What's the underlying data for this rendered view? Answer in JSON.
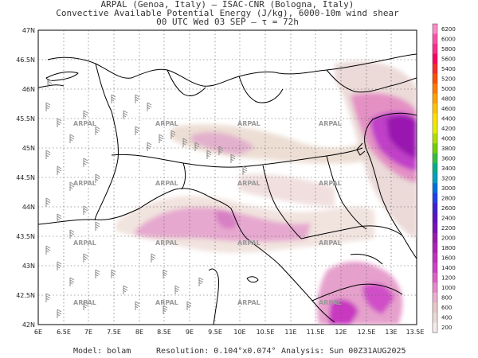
{
  "header": {
    "line1": "ARPAL (Genoa, Italy)  –  ISAC-CNR (Bologna, Italy)",
    "line2": "Convective Available Potential Energy (J/kg), 6000-10m wind shear",
    "line3": "00 UTC Wed 03 SEP  –  τ = 72h"
  },
  "axes": {
    "lat_labels": [
      "47N",
      "46.5N",
      "46N",
      "45.5N",
      "45N",
      "44.5N",
      "44N",
      "43.5N",
      "43N",
      "42.5N",
      "42N"
    ],
    "lon_labels": [
      "6E",
      "6.5E",
      "7E",
      "7.5E",
      "8E",
      "8.5E",
      "9E",
      "9.5E",
      "10E",
      "10.5E",
      "11E",
      "11.5E",
      "12E",
      "12.5E",
      "13E",
      "13.5E"
    ]
  },
  "watermark": "ARPAL",
  "colorbar": {
    "levels": [
      "6200",
      "6000",
      "5800",
      "5600",
      "5400",
      "5200",
      "5000",
      "4800",
      "4600",
      "4400",
      "4200",
      "4000",
      "3800",
      "3600",
      "3400",
      "3200",
      "3000",
      "2800",
      "2600",
      "2400",
      "2200",
      "2000",
      "1800",
      "1600",
      "1400",
      "1200",
      "1000",
      "800",
      "600",
      "400",
      "200"
    ],
    "colors": [
      "#ff8ac8",
      "#ff4fa8",
      "#ff2a8a",
      "#ff0060",
      "#ff2a2a",
      "#ff4f00",
      "#ff7a00",
      "#ffa000",
      "#ffc400",
      "#ffe000",
      "#e6ef00",
      "#b0e000",
      "#70d000",
      "#30c040",
      "#00b08a",
      "#00a0c0",
      "#0070e0",
      "#2040f0",
      "#4020d0",
      "#6010c0",
      "#7a10b8",
      "#9a18b0",
      "#b020b8",
      "#c030c0",
      "#d040c8",
      "#e060c8",
      "#e888cc",
      "#eaaed0",
      "#e9c8c8",
      "#eadad4",
      "#f3ecea"
    ]
  },
  "footer": {
    "model": "Model: bolam",
    "resolution": "Resolution: 0.104°x0.074°",
    "analysis": "Analysis: Sun 00Z31AUG2025"
  }
}
